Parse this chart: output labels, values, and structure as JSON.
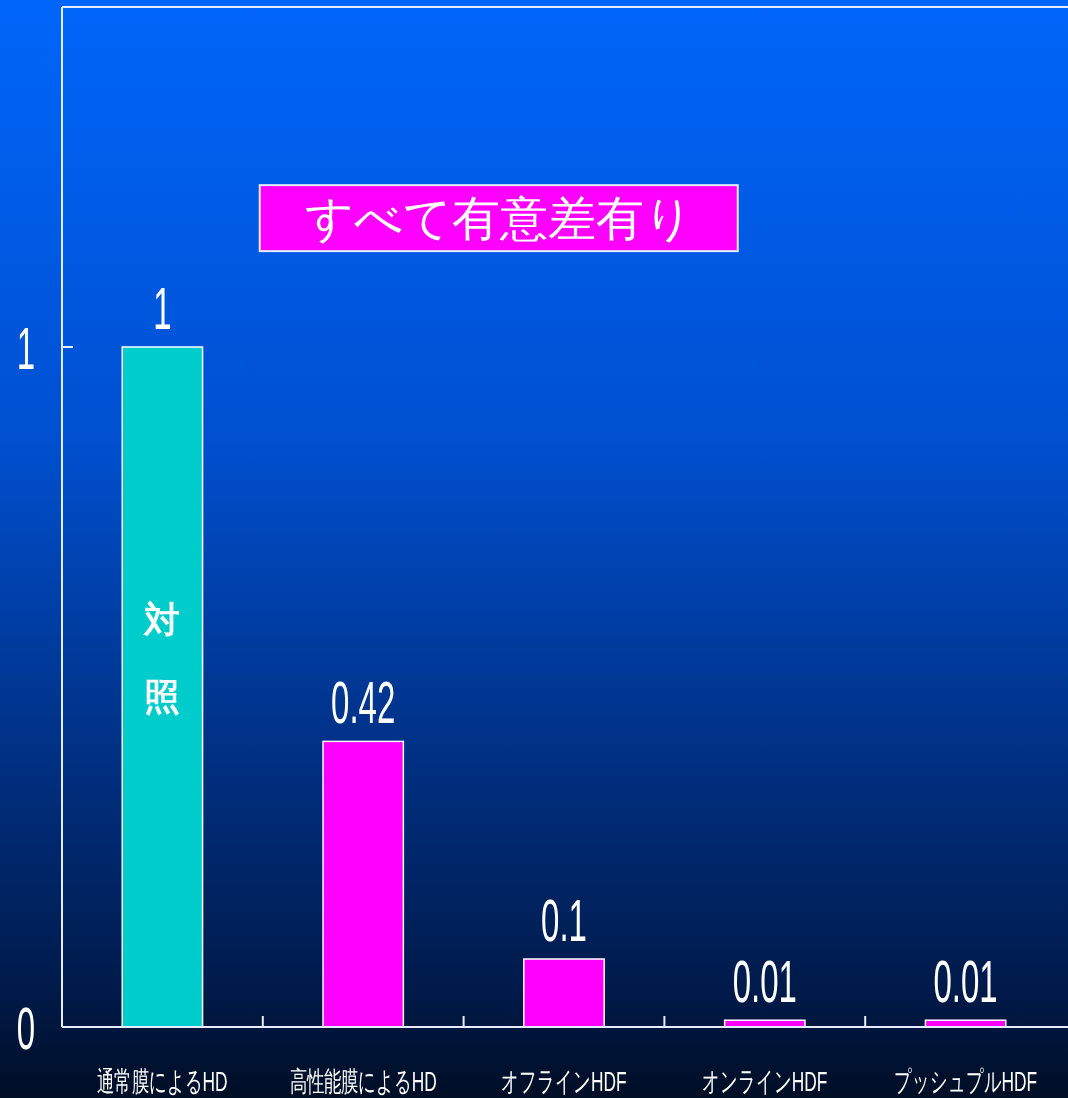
{
  "chart_data": {
    "type": "bar",
    "categories": [
      "通常膜によるHD",
      "高性能膜によるHD",
      "オフラインHDF",
      "オンラインHDF",
      "プッシュプルHDF"
    ],
    "values": [
      1,
      0.42,
      0.1,
      0.01,
      0.01
    ],
    "colors": [
      "#00cccc",
      "#ff00ff",
      "#ff00ff",
      "#ff00ff",
      "#ff00ff"
    ],
    "ylim": [
      0,
      1.5
    ],
    "yticks": [
      0,
      1
    ],
    "data_labels": true,
    "annotations": [
      "すべて有意差有り",
      "対照"
    ]
  }
}
